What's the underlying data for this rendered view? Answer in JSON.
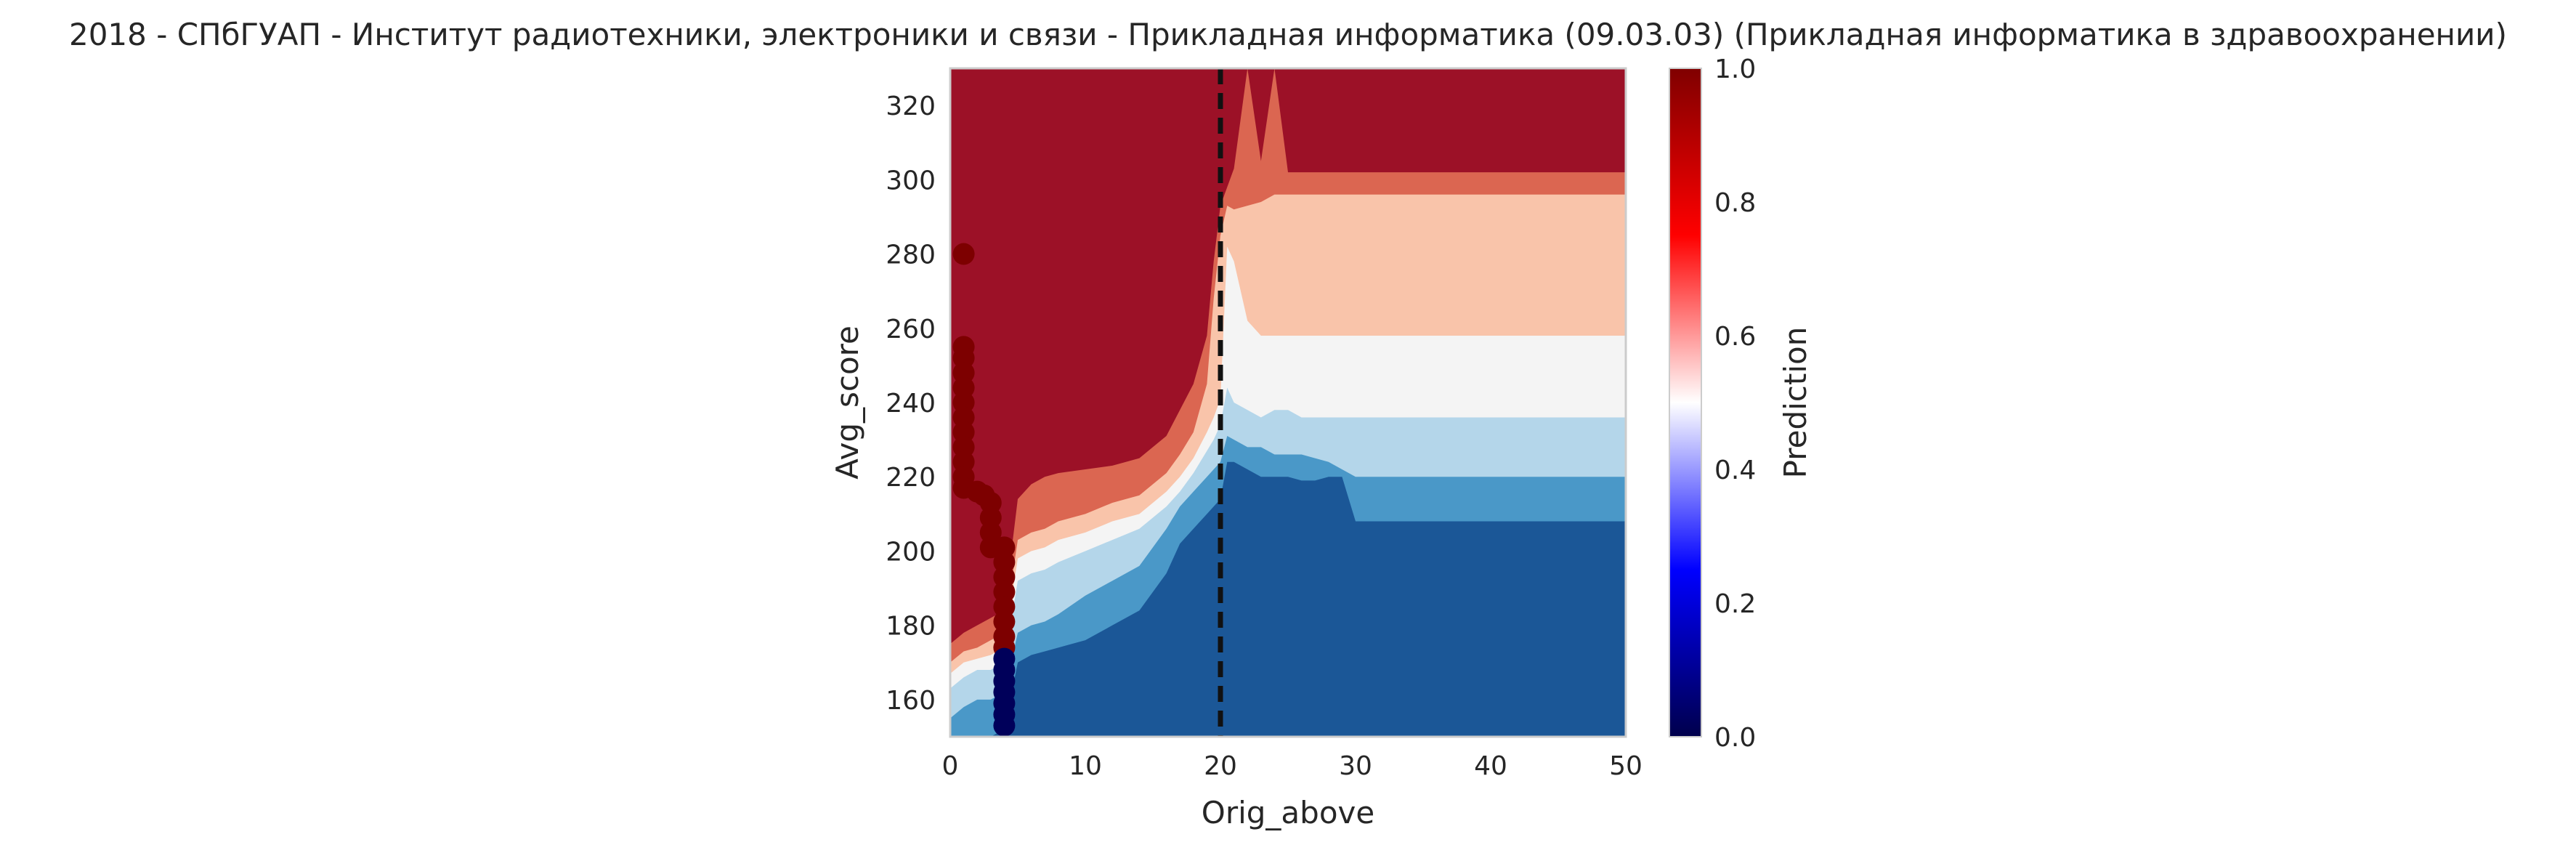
{
  "chart_data": {
    "type": "contourf",
    "title": "2018 - СПбГУАП - Институт радиотехники, электроники и связи - Прикладная информатика (09.03.03) (Прикладная информатика в здравоохранении)",
    "xlabel": "Orig_above",
    "ylabel": "Avg_score",
    "colorbar_label": "Prediction",
    "xlim": [
      0,
      50
    ],
    "ylim": [
      150,
      330
    ],
    "xticks": [
      0,
      10,
      20,
      30,
      40,
      50
    ],
    "yticks": [
      160,
      180,
      200,
      220,
      240,
      260,
      280,
      300,
      320
    ],
    "colorbar_range": [
      0,
      1
    ],
    "colorbar_ticks": [
      0.0,
      0.2,
      0.4,
      0.6,
      0.8,
      1.0
    ],
    "colorbar_tick_labels": [
      "0.0",
      "0.2",
      "0.4",
      "0.6",
      "0.8",
      "1.0"
    ],
    "threshold_line_x": 20,
    "colormap": "seismic",
    "level_colors": [
      "#1b5797",
      "#4a98c8",
      "#b4d6ea",
      "#f4f4f4",
      "#f9c4aa",
      "#db6651",
      "#9c1127"
    ],
    "boundaries": {
      "x": [
        0,
        1,
        2,
        3,
        4,
        5,
        6,
        7,
        8,
        10,
        12,
        14,
        16,
        17,
        18,
        19,
        19.5,
        20,
        20.5,
        21,
        22,
        23,
        24,
        25,
        26,
        27,
        28,
        29,
        30,
        35,
        40,
        45,
        50
      ],
      "b1": [
        150,
        150,
        150,
        150,
        152,
        170,
        172,
        173,
        174,
        176,
        180,
        184,
        194,
        202,
        206,
        210,
        212,
        214,
        224,
        224,
        222,
        220,
        220,
        220,
        219,
        219,
        220,
        220,
        208,
        208,
        208,
        208,
        208
      ],
      "b2": [
        155,
        158,
        160,
        160,
        162,
        178,
        180,
        181,
        183,
        188,
        192,
        196,
        206,
        212,
        216,
        220,
        222,
        224,
        231,
        230,
        228,
        228,
        226,
        226,
        226,
        225,
        224,
        222,
        220,
        220,
        220,
        220,
        220
      ],
      "b3": [
        163,
        166,
        168,
        168,
        170,
        192,
        194,
        195,
        197,
        200,
        203,
        206,
        212,
        216,
        221,
        227,
        230,
        234,
        244,
        240,
        238,
        236,
        238,
        238,
        236,
        236,
        236,
        236,
        236,
        236,
        236,
        236,
        236
      ],
      "b4": [
        167,
        170,
        171,
        172,
        174,
        198,
        200,
        201,
        203,
        205,
        208,
        210,
        216,
        220,
        225,
        232,
        236,
        241,
        282,
        278,
        262,
        258,
        258,
        258,
        258,
        258,
        258,
        258,
        258,
        258,
        258,
        258,
        258
      ],
      "b5": [
        170,
        173,
        174,
        176,
        178,
        203,
        205,
        206,
        208,
        210,
        213,
        215,
        221,
        226,
        232,
        245,
        268,
        285,
        293,
        292,
        293,
        294,
        296,
        296,
        296,
        296,
        296,
        296,
        296,
        296,
        296,
        296,
        296
      ],
      "b6": [
        175,
        178,
        180,
        182,
        184,
        214,
        218,
        220,
        221,
        222,
        223,
        225,
        231,
        238,
        245,
        258,
        278,
        293,
        298,
        303,
        330,
        305,
        330,
        302,
        302,
        302,
        302,
        302,
        302,
        302,
        302,
        302,
        302
      ]
    },
    "scatter_points": [
      {
        "x": 1.0,
        "y": 280,
        "value": 1
      },
      {
        "x": 1.0,
        "y": 255,
        "value": 1
      },
      {
        "x": 1.0,
        "y": 252,
        "value": 1
      },
      {
        "x": 1.0,
        "y": 248,
        "value": 1
      },
      {
        "x": 1.0,
        "y": 244,
        "value": 1
      },
      {
        "x": 1.0,
        "y": 240,
        "value": 1
      },
      {
        "x": 1.0,
        "y": 236,
        "value": 1
      },
      {
        "x": 1.0,
        "y": 232,
        "value": 1
      },
      {
        "x": 1.0,
        "y": 228,
        "value": 1
      },
      {
        "x": 1.0,
        "y": 224,
        "value": 1
      },
      {
        "x": 1.0,
        "y": 220,
        "value": 1
      },
      {
        "x": 1.0,
        "y": 217,
        "value": 1
      },
      {
        "x": 2.0,
        "y": 216,
        "value": 1
      },
      {
        "x": 2.5,
        "y": 215,
        "value": 1
      },
      {
        "x": 3.0,
        "y": 213,
        "value": 1
      },
      {
        "x": 3.0,
        "y": 209,
        "value": 1
      },
      {
        "x": 3.0,
        "y": 205,
        "value": 1
      },
      {
        "x": 3.0,
        "y": 201,
        "value": 1
      },
      {
        "x": 4.0,
        "y": 201,
        "value": 1
      },
      {
        "x": 4.0,
        "y": 197,
        "value": 1
      },
      {
        "x": 4.0,
        "y": 193,
        "value": 1
      },
      {
        "x": 4.0,
        "y": 189,
        "value": 1
      },
      {
        "x": 4.0,
        "y": 185,
        "value": 1
      },
      {
        "x": 4.0,
        "y": 181,
        "value": 1
      },
      {
        "x": 4.0,
        "y": 177,
        "value": 1
      },
      {
        "x": 4.0,
        "y": 174,
        "value": 1
      },
      {
        "x": 4.0,
        "y": 171,
        "value": 0
      },
      {
        "x": 4.0,
        "y": 168,
        "value": 0
      },
      {
        "x": 4.0,
        "y": 165,
        "value": 0
      },
      {
        "x": 4.0,
        "y": 162,
        "value": 0
      },
      {
        "x": 4.0,
        "y": 159,
        "value": 0
      },
      {
        "x": 4.0,
        "y": 156,
        "value": 0
      },
      {
        "x": 4.0,
        "y": 153,
        "value": 0
      }
    ]
  }
}
